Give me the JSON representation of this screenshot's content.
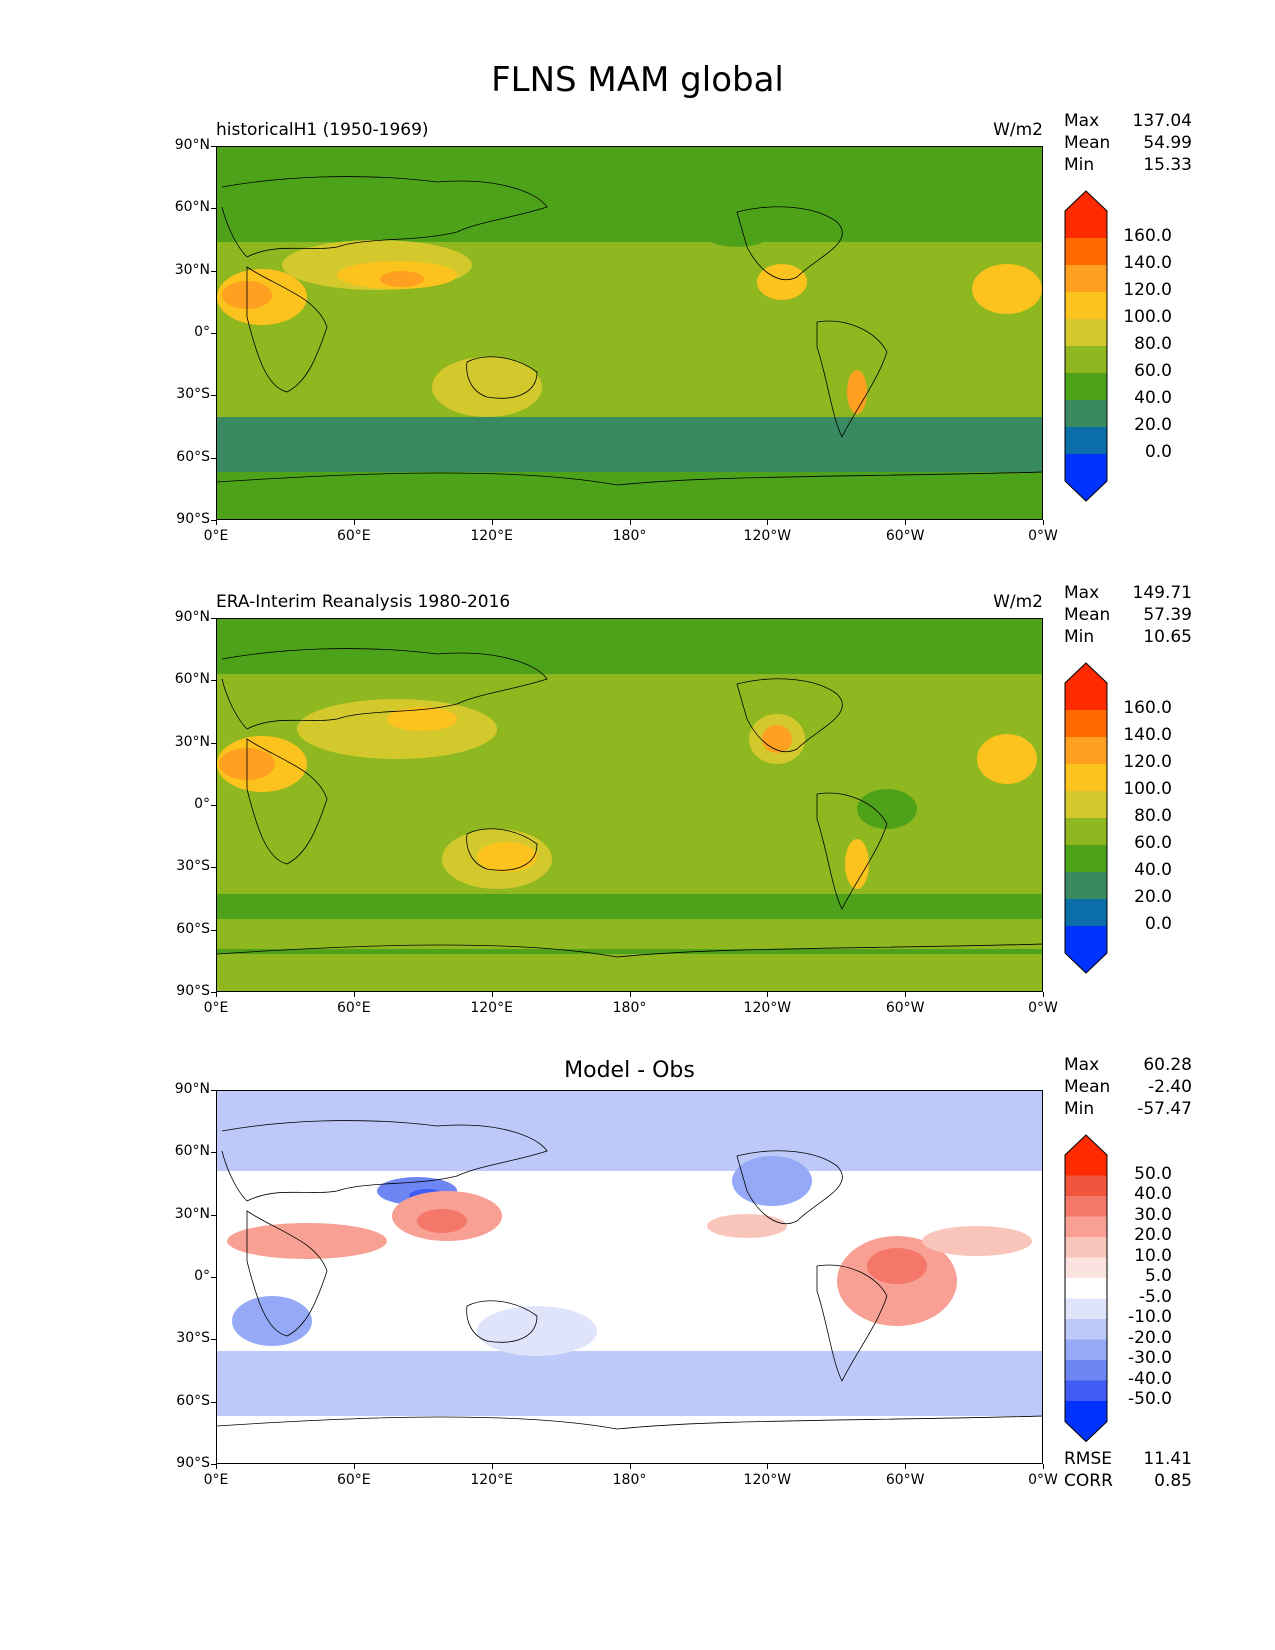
{
  "figure": {
    "title": "FLNS MAM global"
  },
  "chart_data": [
    {
      "type": "heatmap",
      "title": "historicalH1 (1950-1969)",
      "units": "W/m2",
      "stats": {
        "max_label": "Max",
        "max": "137.04",
        "mean_label": "Mean",
        "mean": "54.99",
        "min_label": "Min",
        "min": "15.33"
      },
      "xlabels": [
        "0°E",
        "60°E",
        "120°E",
        "180°",
        "120°W",
        "60°W",
        "0°W"
      ],
      "ylabels": [
        "90°N",
        "60°N",
        "30°N",
        "0°",
        "30°S",
        "60°S",
        "90°S"
      ],
      "colorbar": {
        "labels": [
          "160.0",
          "140.0",
          "120.0",
          "100.0",
          "80.0",
          "60.0",
          "40.0",
          "20.0",
          "0.0"
        ],
        "colors": [
          "#ff2a00",
          "#ff6a00",
          "#ffa020",
          "#fcc21e",
          "#d3c92d",
          "#8fb820",
          "#4ea21a",
          "#398a60",
          "#0b6ea8",
          "#0033ff"
        ]
      }
    },
    {
      "type": "heatmap",
      "title": "ERA-Interim Reanalysis 1980-2016",
      "units": "W/m2",
      "stats": {
        "max_label": "Max",
        "max": "149.71",
        "mean_label": "Mean",
        "mean": "57.39",
        "min_label": "Min",
        "min": "10.65"
      },
      "xlabels": [
        "0°E",
        "60°E",
        "120°E",
        "180°",
        "120°W",
        "60°W",
        "0°W"
      ],
      "ylabels": [
        "90°N",
        "60°N",
        "30°N",
        "0°",
        "30°S",
        "60°S",
        "90°S"
      ],
      "colorbar": {
        "labels": [
          "160.0",
          "140.0",
          "120.0",
          "100.0",
          "80.0",
          "60.0",
          "40.0",
          "20.0",
          "0.0"
        ],
        "colors": [
          "#ff2a00",
          "#ff6a00",
          "#ffa020",
          "#fcc21e",
          "#d3c92d",
          "#8fb820",
          "#4ea21a",
          "#398a60",
          "#0b6ea8",
          "#0033ff"
        ]
      }
    },
    {
      "type": "heatmap",
      "title": "Model - Obs",
      "units": "",
      "stats": {
        "max_label": "Max",
        "max": "60.28",
        "mean_label": "Mean",
        "mean": "-2.40",
        "min_label": "Min",
        "min": "-57.47"
      },
      "xlabels": [
        "0°E",
        "60°E",
        "120°E",
        "180°",
        "120°W",
        "60°W",
        "0°W"
      ],
      "ylabels": [
        "90°N",
        "60°N",
        "30°N",
        "0°",
        "30°S",
        "60°S",
        "90°S"
      ],
      "colorbar": {
        "labels": [
          "50.0",
          "40.0",
          "30.0",
          "20.0",
          "10.0",
          "5.0",
          "-5.0",
          "-10.0",
          "-20.0",
          "-30.0",
          "-40.0",
          "-50.0"
        ],
        "colors": [
          "#ff2a00",
          "#f2553e",
          "#f4776a",
          "#f7a093",
          "#f9c5bb",
          "#fbe4df",
          "#ffffff",
          "#dfe4fb",
          "#bdc9f8",
          "#96a9f6",
          "#6d86f4",
          "#3e5cf5",
          "#0033ff"
        ]
      },
      "metrics": {
        "rmse_label": "RMSE",
        "rmse": "11.41",
        "corr_label": "CORR",
        "corr": "0.85"
      }
    }
  ]
}
